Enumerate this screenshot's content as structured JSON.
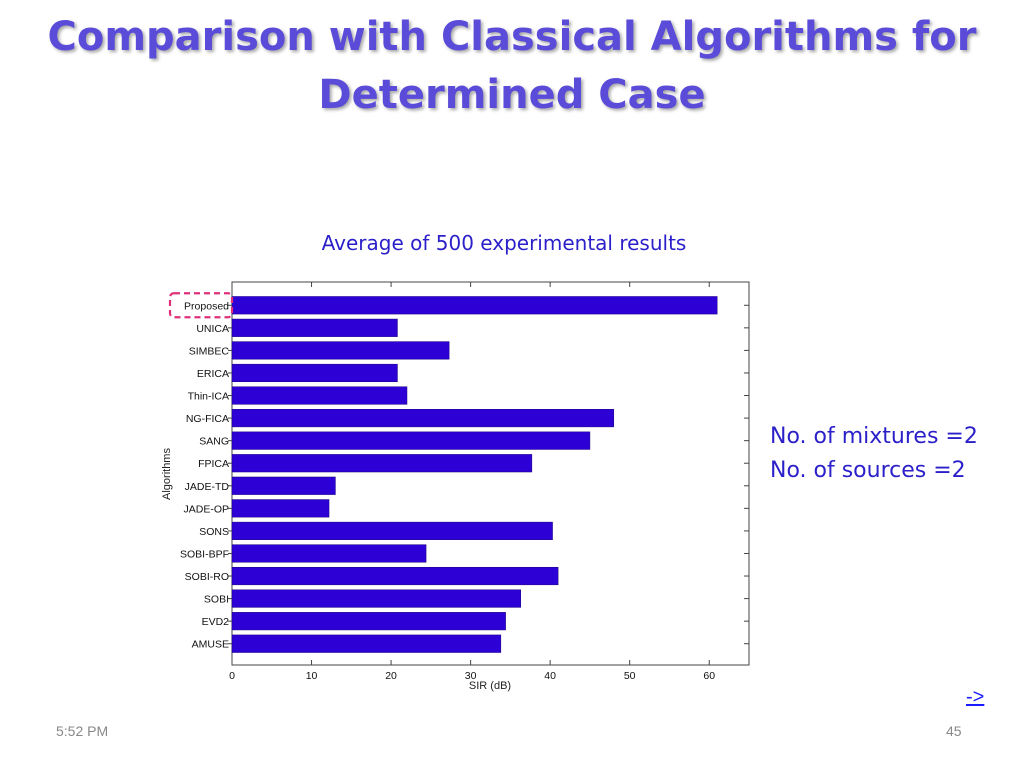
{
  "slide": {
    "title": "Comparison with Classical Algorithms for Determined Case",
    "subtitle": "Average of 500 experimental results",
    "notes": [
      "No. of mixtures =2",
      "No. of sources =2"
    ],
    "next_link": "->",
    "footer_time": "5:52 PM",
    "footer_page": "45"
  },
  "colors": {
    "title": "#5a4cd8",
    "bar": "#2d00d6",
    "highlight": "#e0307a",
    "text_blue": "#2b1fc9"
  },
  "chart_data": {
    "type": "bar",
    "orientation": "horizontal",
    "categories": [
      "Proposed",
      "UNICA",
      "SIMBEC",
      "ERICA",
      "Thin-ICA",
      "NG-FICA",
      "SANG",
      "FPICA",
      "JADE-TD",
      "JADE-OP",
      "SONS",
      "SOBI-BPF",
      "SOBI-RO",
      "SOBI",
      "EVD2",
      "AMUSE"
    ],
    "values": [
      61,
      20.8,
      27.3,
      20.8,
      22,
      48,
      45,
      37.7,
      13,
      12.2,
      40.3,
      24.4,
      41,
      36.3,
      34.4,
      33.8
    ],
    "xlabel": "SIR (dB)",
    "ylabel": "Algorithms",
    "xlim": [
      0,
      65
    ],
    "xticks": [
      0,
      10,
      20,
      30,
      40,
      50,
      60
    ],
    "highlighted_category": "Proposed",
    "grid": false
  }
}
